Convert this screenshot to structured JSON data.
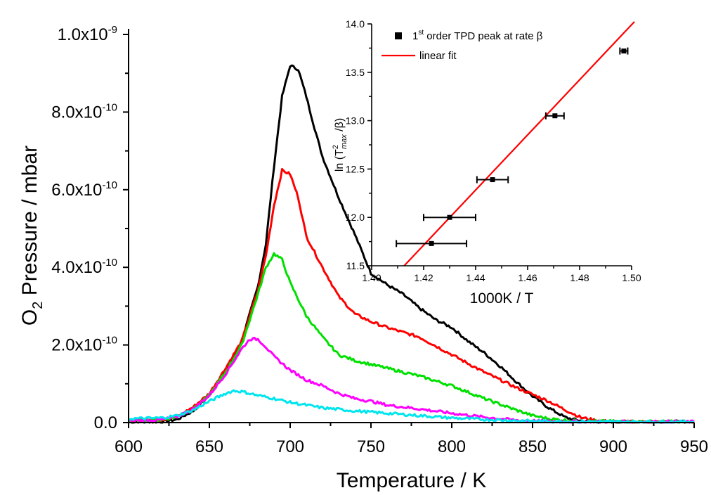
{
  "chart_data": [
    {
      "type": "line",
      "xlabel": "Temperature / K",
      "ylabel": {
        "base": "O",
        "sub": "2",
        "rest": " Pressure / mbar"
      },
      "xlim": [
        600,
        950
      ],
      "ylim": [
        0,
        1e-09
      ],
      "xticks": [
        "600",
        "650",
        "700",
        "750",
        "800",
        "850",
        "900",
        "950"
      ],
      "yticks": [
        {
          "value": 0,
          "mant": "0.0",
          "exp": ""
        },
        {
          "value": 2e-10,
          "mant": "2.0x10",
          "exp": "-10"
        },
        {
          "value": 4e-10,
          "mant": "4.0x10",
          "exp": "-10"
        },
        {
          "value": 6e-10,
          "mant": "6.0x10",
          "exp": "-10"
        },
        {
          "value": 8e-10,
          "mant": "8.0x10",
          "exp": "-10"
        },
        {
          "value": 1e-09,
          "mant": "1.0x10",
          "exp": "-9"
        }
      ],
      "series": [
        {
          "color": "#000000",
          "x": [
            600,
            620,
            630,
            640,
            650,
            660,
            670,
            680,
            685,
            690,
            695,
            700,
            705,
            710,
            715,
            720,
            730,
            740,
            750,
            760,
            770,
            780,
            790,
            800,
            810,
            820,
            830,
            840,
            850,
            860,
            870,
            875,
            880,
            885,
            890,
            900,
            950
          ],
          "y": [
            1e-12,
            2e-12,
            8e-12,
            3e-11,
            7e-11,
            1.35e-10,
            2.1e-10,
            3.5e-10,
            4.6e-10,
            6.6e-10,
            8.4e-10,
            9.2e-10,
            9.1e-10,
            8.4e-10,
            7.6e-10,
            6.85e-10,
            5.8e-10,
            4.85e-10,
            3.85e-10,
            3.55e-10,
            3.3e-10,
            2.95e-10,
            2.65e-10,
            2.45e-10,
            2.1e-10,
            1.8e-10,
            1.45e-10,
            1.05e-10,
            6.8e-11,
            3.8e-11,
            1.4e-11,
            8e-12,
            5e-12,
            3e-12,
            2e-12,
            2e-12,
            2e-12
          ]
        },
        {
          "color": "#ff0000",
          "x": [
            600,
            620,
            630,
            640,
            650,
            660,
            670,
            680,
            685,
            690,
            695,
            700,
            705,
            710,
            720,
            730,
            740,
            750,
            760,
            780,
            800,
            820,
            840,
            860,
            870,
            880,
            890,
            900,
            950
          ],
          "y": [
            5e-12,
            7e-12,
            1.5e-11,
            4e-11,
            7.5e-11,
            1.4e-10,
            2.1e-10,
            3.4e-10,
            4.3e-10,
            5.6e-10,
            6.5e-10,
            6.4e-10,
            5.8e-10,
            4.8e-10,
            4e-10,
            3.25e-10,
            2.8e-10,
            2.6e-10,
            2.45e-10,
            2.2e-10,
            1.75e-10,
            1.3e-10,
            9e-11,
            5.5e-11,
            3.3e-11,
            1.3e-11,
            5e-12,
            2e-12,
            2e-12
          ]
        },
        {
          "color": "#00e000",
          "x": [
            600,
            620,
            630,
            640,
            650,
            660,
            670,
            680,
            685,
            690,
            695,
            700,
            710,
            720,
            730,
            740,
            750,
            760,
            780,
            800,
            820,
            840,
            850,
            860,
            870,
            880,
            900,
            950
          ],
          "y": [
            5e-12,
            7e-12,
            1.5e-11,
            3.5e-11,
            7e-11,
            1.3e-10,
            2e-10,
            3.3e-10,
            4e-10,
            4.35e-10,
            4.2e-10,
            3.6e-10,
            2.75e-10,
            2.2e-10,
            1.75e-10,
            1.6e-10,
            1.5e-10,
            1.4e-10,
            1.2e-10,
            9.5e-11,
            6.2e-11,
            3.2e-11,
            1.8e-11,
            1e-11,
            6e-12,
            4e-12,
            3e-12,
            2e-12
          ]
        },
        {
          "color": "#ff00ff",
          "x": [
            600,
            620,
            630,
            640,
            650,
            660,
            670,
            675,
            680,
            685,
            690,
            700,
            710,
            720,
            730,
            740,
            750,
            760,
            780,
            800,
            820,
            840,
            860,
            900,
            950
          ],
          "y": [
            5e-12,
            7e-12,
            1.5e-11,
            3.5e-11,
            7e-11,
            1.25e-10,
            1.9e-10,
            2.15e-10,
            2.15e-10,
            1.95e-10,
            1.7e-10,
            1.35e-10,
            1.1e-10,
            9.5e-11,
            7.5e-11,
            6.2e-11,
            5.5e-11,
            4.5e-11,
            3.5e-11,
            2.4e-11,
            1.4e-11,
            6e-12,
            3e-12,
            2e-12,
            2e-12
          ]
        },
        {
          "color": "#00e5ee",
          "x": [
            600,
            620,
            630,
            640,
            650,
            660,
            665,
            670,
            680,
            690,
            700,
            720,
            740,
            760,
            780,
            800,
            820,
            840,
            860,
            900,
            950
          ],
          "y": [
            1e-11,
            1.2e-11,
            1.8e-11,
            3.2e-11,
            5.5e-11,
            7.5e-11,
            8.2e-11,
            8e-11,
            7e-11,
            6.2e-11,
            5.2e-11,
            3.8e-11,
            3e-11,
            2.4e-11,
            1.8e-11,
            1.2e-11,
            8e-12,
            5e-12,
            3e-12,
            2e-12,
            2e-12
          ]
        }
      ]
    },
    {
      "type": "scatter",
      "xlabel": "1000K / T",
      "ylabel": {
        "pre": "ln (T",
        "sup": "2",
        "sub": "max",
        "post": " /β)"
      },
      "xlim": [
        1.4,
        1.5
      ],
      "ylim": [
        11.5,
        14.0
      ],
      "xticks": [
        "1.40",
        "1.42",
        "1.44",
        "1.46",
        "1.48",
        "1.50"
      ],
      "yticks": [
        "11.5",
        "12.0",
        "12.5",
        "13.0",
        "13.5",
        "14.0"
      ],
      "points": [
        {
          "x": 1.423,
          "y": 11.73,
          "xerr": 0.0135
        },
        {
          "x": 1.43,
          "y": 12.0,
          "xerr": 0.01
        },
        {
          "x": 1.4465,
          "y": 12.39,
          "xerr": 0.006
        },
        {
          "x": 1.4705,
          "y": 13.05,
          "xerr": 0.0035
        },
        {
          "x": 1.497,
          "y": 13.72,
          "xerr": 0.0015
        }
      ],
      "fit": {
        "x": [
          1.4125,
          1.5
        ],
        "y": [
          11.5,
          13.95
        ],
        "color": "#ff0000"
      },
      "legend": [
        {
          "marker": "square",
          "pre": "1",
          "sup": "st",
          "text": " order TPD peak at rate β"
        },
        {
          "marker": "line",
          "text": "linear fit"
        }
      ]
    }
  ]
}
